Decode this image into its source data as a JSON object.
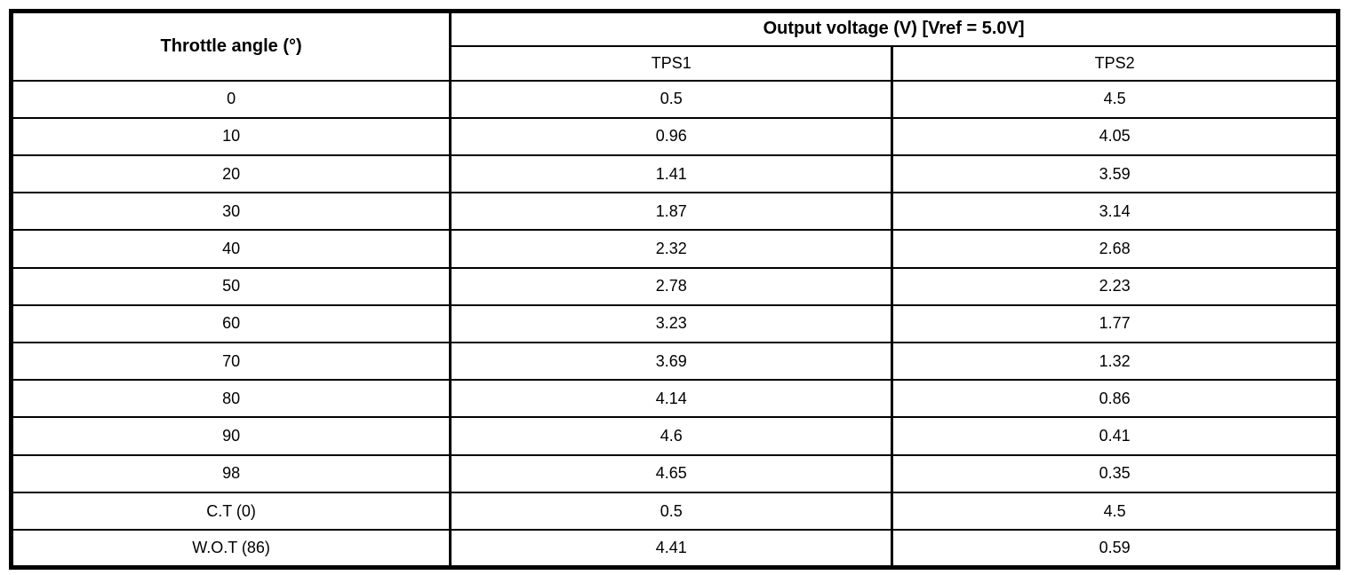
{
  "table": {
    "title_col_header": "Throttle angle (°)",
    "group_header": "Output voltage (V) [Vref = 5.0V]",
    "sub_headers": {
      "tps1": "TPS1",
      "tps2": "TPS2"
    },
    "rows": [
      {
        "angle": "0",
        "tps1": "0.5",
        "tps2": "4.5"
      },
      {
        "angle": "10",
        "tps1": "0.96",
        "tps2": "4.05"
      },
      {
        "angle": "20",
        "tps1": "1.41",
        "tps2": "3.59"
      },
      {
        "angle": "30",
        "tps1": "1.87",
        "tps2": "3.14"
      },
      {
        "angle": "40",
        "tps1": "2.32",
        "tps2": "2.68"
      },
      {
        "angle": "50",
        "tps1": "2.78",
        "tps2": "2.23"
      },
      {
        "angle": "60",
        "tps1": "3.23",
        "tps2": "1.77"
      },
      {
        "angle": "70",
        "tps1": "3.69",
        "tps2": "1.32"
      },
      {
        "angle": "80",
        "tps1": "4.14",
        "tps2": "0.86"
      },
      {
        "angle": "90",
        "tps1": "4.6",
        "tps2": "0.41"
      },
      {
        "angle": "98",
        "tps1": "4.65",
        "tps2": "0.35"
      },
      {
        "angle": "C.T (0)",
        "tps1": "0.5",
        "tps2": "4.5"
      },
      {
        "angle": "W.O.T (86)",
        "tps1": "4.41",
        "tps2": "0.59"
      }
    ],
    "colors": {
      "border": "#000000",
      "text": "#000000",
      "background": "#ffffff"
    }
  }
}
